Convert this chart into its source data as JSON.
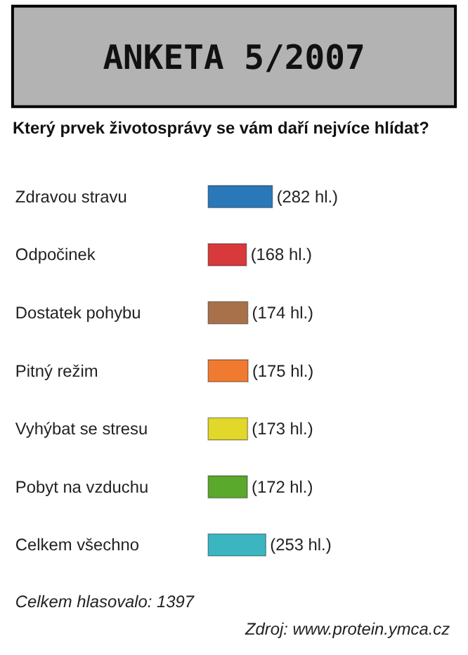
{
  "chart_data": {
    "type": "bar",
    "orientation": "horizontal",
    "title": "ANKETA 5/2007",
    "subtitle": "Který prvek životosprávy se vám daří nejvíce hlídat?",
    "categories": [
      "Zdravou stravu",
      "Odpočinek",
      "Dostatek pohybu",
      "Pitný režim",
      "Vyhýbat se stresu",
      "Pobyt na vzduchu",
      "Celkem všechno"
    ],
    "values": [
      282,
      168,
      174,
      175,
      173,
      172,
      253
    ],
    "colors": [
      "#2a78b8",
      "#d8393b",
      "#a8714a",
      "#f07a30",
      "#e2d82a",
      "#5aa82c",
      "#3bb6c0"
    ],
    "value_labels": [
      "(282 hl.)",
      "(168 hl.)",
      "(174 hl.)",
      "(175 hl.)",
      "(173 hl.)",
      "(172 hl.)",
      "(253 hl.)"
    ],
    "annotations": [
      "Celkem hlasovalo: 1397",
      "Zdroj: www.protein.ymca.cz"
    ],
    "grid": false,
    "legend": false
  }
}
